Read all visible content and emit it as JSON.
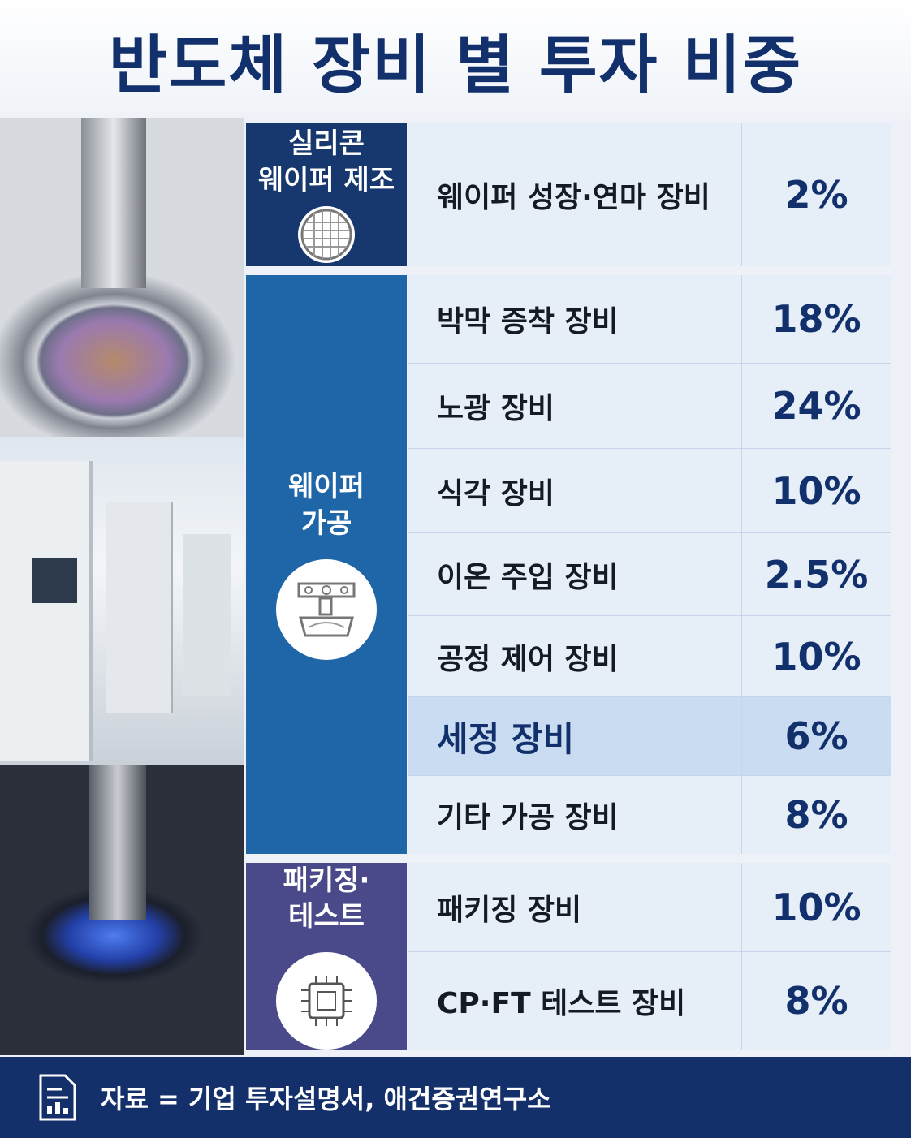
{
  "title": "반도체 장비 별 투자 비중",
  "groups": [
    {
      "label": [
        "실리콘",
        "웨이퍼 제조"
      ],
      "rows": [
        {
          "name": "웨이퍼 성장·연마 장비",
          "share": "2%"
        }
      ]
    },
    {
      "label": [
        "웨이퍼",
        "가공"
      ],
      "rows": [
        {
          "name": "박막 증착 장비",
          "share": "18%"
        },
        {
          "name": "노광 장비",
          "share": "24%"
        },
        {
          "name": "식각 장비",
          "share": "10%"
        },
        {
          "name": "이온 주입 장비",
          "share": "2.5%"
        },
        {
          "name": "공정 제어 장비",
          "share": "10%"
        },
        {
          "name": "세정 장비",
          "share": "6%"
        },
        {
          "name": "기타 가공 장비",
          "share": "8%"
        }
      ]
    },
    {
      "label": [
        "패키징·",
        "테스트"
      ],
      "rows": [
        {
          "name": "패키징 장비",
          "share": "10%"
        },
        {
          "name": "CP·FT 테스트 장비",
          "share": "8%"
        }
      ]
    }
  ],
  "source": "자료 = 기업 투자설명서, 애건증권연구소"
}
